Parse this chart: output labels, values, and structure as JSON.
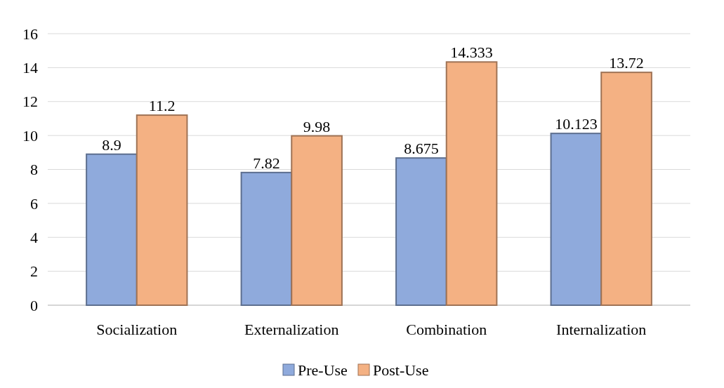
{
  "chart_data": {
    "type": "bar",
    "categories": [
      "Socialization",
      "Externalization",
      "Combination",
      "Internalization"
    ],
    "series": [
      {
        "name": "Pre-Use",
        "color": "#8faadc",
        "values": [
          8.9,
          7.82,
          8.675,
          10.123
        ]
      },
      {
        "name": "Post-Use",
        "color": "#f4b183",
        "values": [
          11.2,
          9.98,
          14.333,
          13.72
        ]
      }
    ],
    "ylim": [
      0,
      16
    ],
    "yticks": [
      0,
      2,
      4,
      6,
      8,
      10,
      12,
      14,
      16
    ],
    "grid": "y",
    "legend": "bottom",
    "data_labels": true
  }
}
